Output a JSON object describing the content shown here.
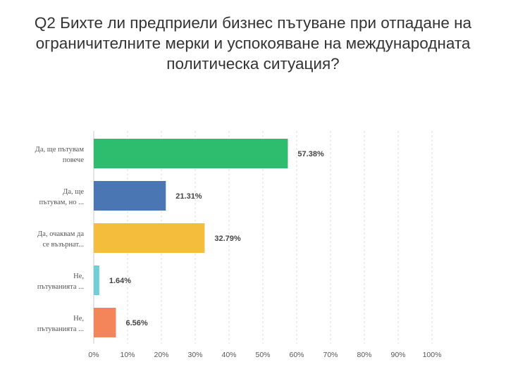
{
  "chart_data": {
    "type": "bar",
    "orientation": "horizontal",
    "title_lines": [
      "Q2 Бихте ли предприели бизнес пътуване при отпадане на",
      "ограничителните мерки и успокояване на международната",
      "политическа ситуация?"
    ],
    "categories": [
      [
        "Да, ще пътувам",
        "повече"
      ],
      [
        "Да, ще",
        "пътувам, но ..."
      ],
      [
        "Да, очаквам да",
        "се възърнат..."
      ],
      [
        "Не,",
        "пътуванията ..."
      ],
      [
        "Не,",
        "пътуванията ..."
      ]
    ],
    "values": [
      57.38,
      21.31,
      32.79,
      1.64,
      6.56
    ],
    "value_labels": [
      "57.38%",
      "21.31%",
      "32.79%",
      "1.64%",
      "6.56%"
    ],
    "colors": [
      "#2ebd6e",
      "#4a77b4",
      "#f4bd3c",
      "#6fcfd6",
      "#f4845a"
    ],
    "xlim": [
      0,
      100
    ],
    "xticks": [
      "0%",
      "10%",
      "20%",
      "30%",
      "40%",
      "50%",
      "60%",
      "70%",
      "80%",
      "90%",
      "100%"
    ],
    "grid": "vertical dashed"
  }
}
